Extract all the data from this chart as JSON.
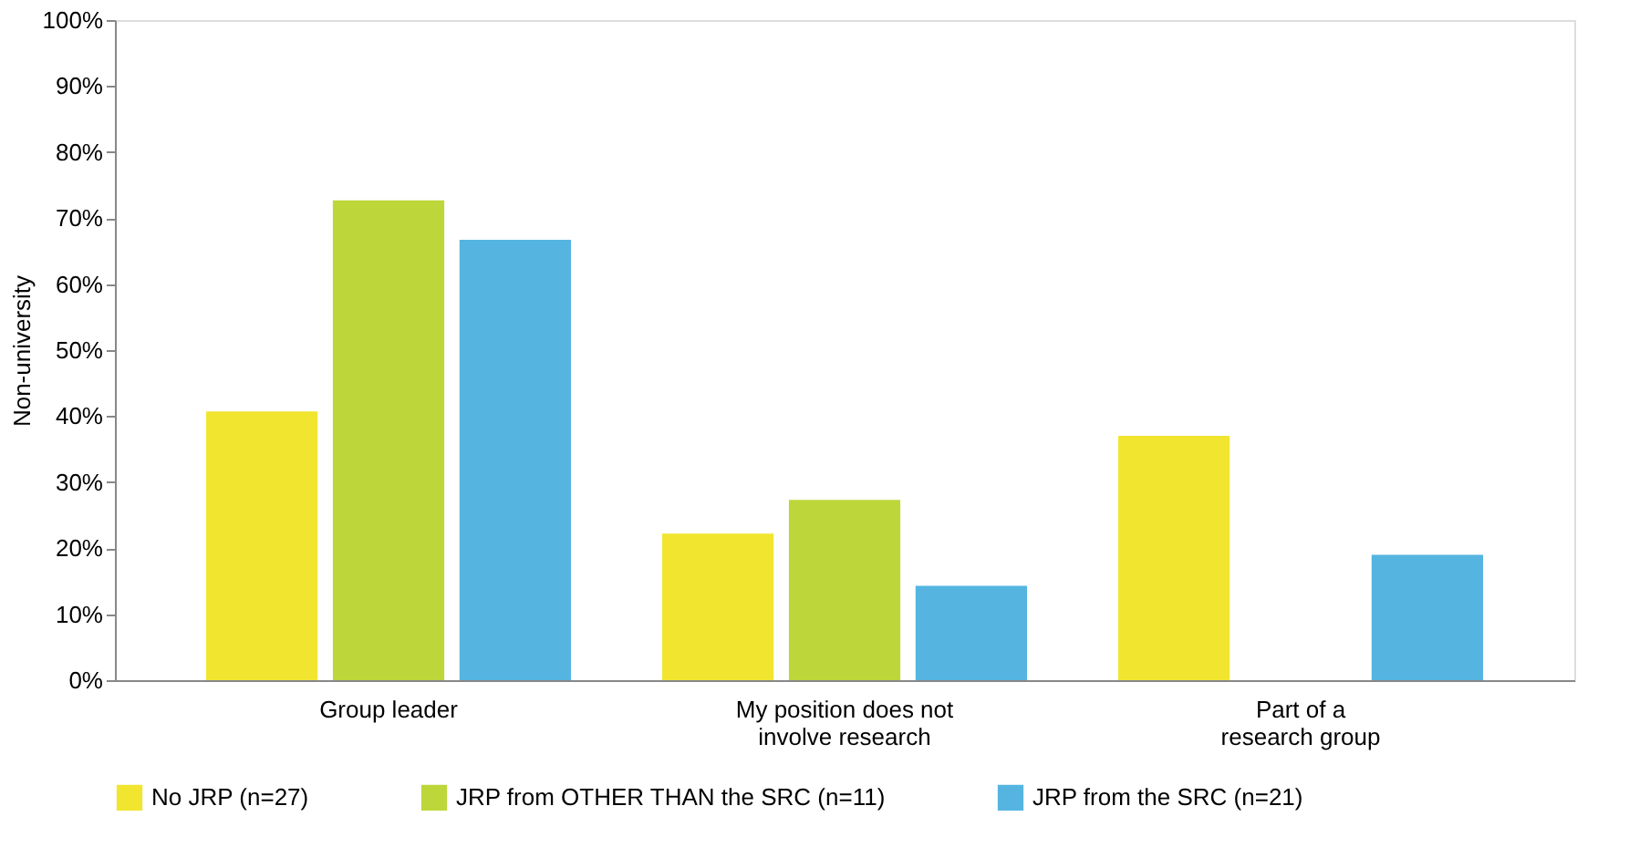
{
  "chart_data": {
    "type": "bar",
    "ylabel": "Non-university",
    "categories": [
      "Group leader",
      "My position does not\ninvolve research",
      "Part of a\nresearch group"
    ],
    "series": [
      {
        "name": "No JRP (n=27)",
        "color": "#f2e52f",
        "values": [
          40.7,
          22.2,
          37.0
        ]
      },
      {
        "name": "JRP from OTHER THAN the SRC (n=11)",
        "color": "#bdd63a",
        "values": [
          72.7,
          27.3,
          0
        ]
      },
      {
        "name": "JRP from the SRC (n=21)",
        "color": "#55b5e0",
        "values": [
          66.7,
          14.3,
          19.0
        ]
      }
    ],
    "ylim": [
      0,
      100
    ],
    "yticks": [
      {
        "value": 0,
        "label": "0%"
      },
      {
        "value": 10,
        "label": "10%"
      },
      {
        "value": 20,
        "label": "20%"
      },
      {
        "value": 30,
        "label": "30%"
      },
      {
        "value": 40,
        "label": "40%"
      },
      {
        "value": 50,
        "label": "50%"
      },
      {
        "value": 60,
        "label": "60%"
      },
      {
        "value": 70,
        "label": "70%"
      },
      {
        "value": 80,
        "label": "80%"
      },
      {
        "value": 90,
        "label": "90%"
      },
      {
        "value": 100,
        "label": "100%"
      }
    ],
    "grid": false,
    "legend": "bottom"
  }
}
